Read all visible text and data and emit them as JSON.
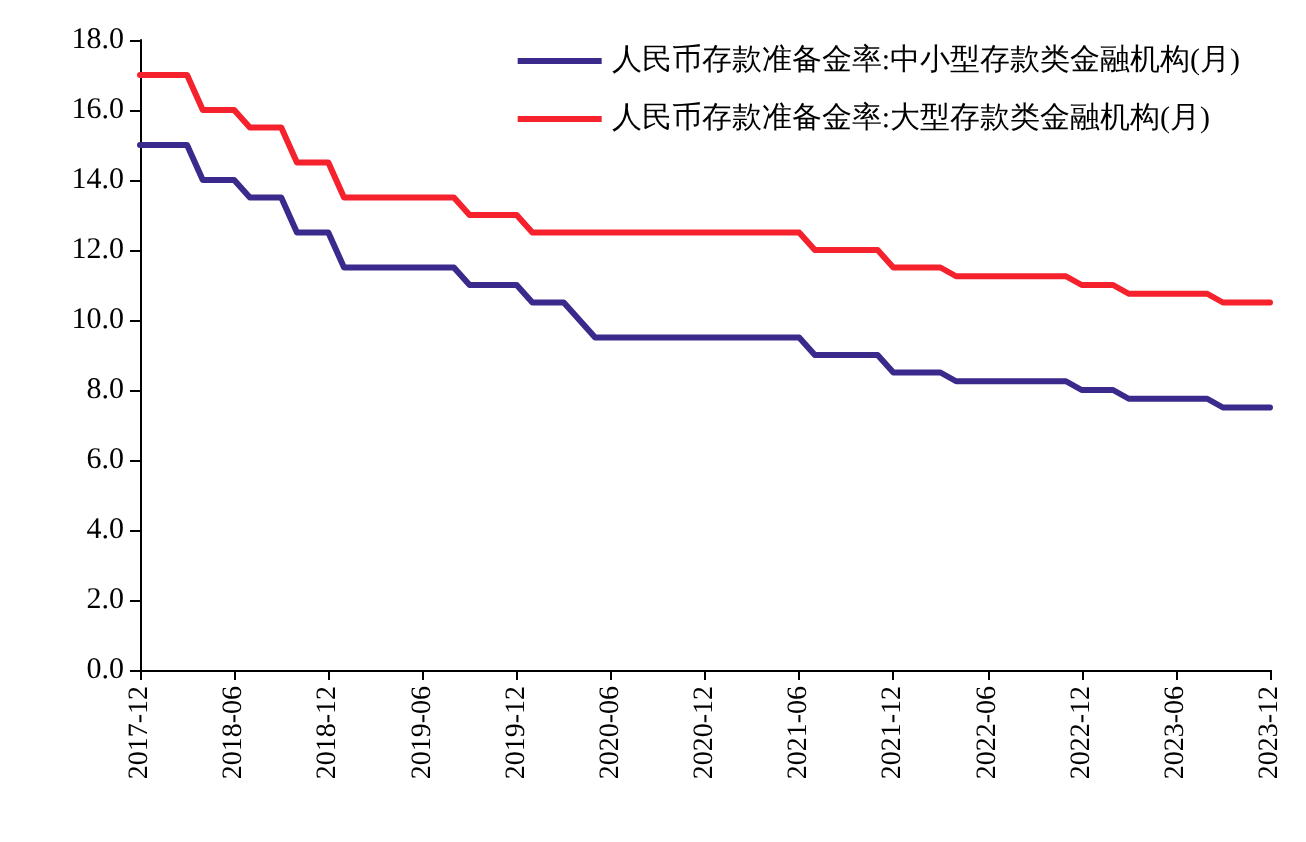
{
  "chart_data": {
    "type": "line",
    "categories": [
      "2017-12",
      null,
      null,
      null,
      null,
      null,
      "2018-06",
      null,
      null,
      null,
      null,
      null,
      "2018-12",
      null,
      null,
      null,
      null,
      null,
      "2019-06",
      null,
      null,
      null,
      null,
      null,
      "2019-12",
      null,
      null,
      null,
      null,
      null,
      "2020-06",
      null,
      null,
      null,
      null,
      null,
      "2020-12",
      null,
      null,
      null,
      null,
      null,
      "2021-06",
      null,
      null,
      null,
      null,
      null,
      "2021-12",
      null,
      null,
      null,
      null,
      null,
      "2022-06",
      null,
      null,
      null,
      null,
      null,
      "2022-12",
      null,
      null,
      null,
      null,
      null,
      "2023-06",
      null,
      null,
      null,
      null,
      null,
      "2023-12"
    ],
    "series": [
      {
        "name": "人民币存款准备金率:中小型存款类金融机构(月)",
        "color": "#3b2a8c",
        "values": [
          15,
          15,
          15,
          15,
          14,
          14,
          14,
          13.5,
          13.5,
          13.5,
          12.5,
          12.5,
          12.5,
          11.5,
          11.5,
          11.5,
          11.5,
          11.5,
          11.5,
          11.5,
          11.5,
          11,
          11,
          11,
          11,
          10.5,
          10.5,
          10.5,
          10,
          9.5,
          9.5,
          9.5,
          9.5,
          9.5,
          9.5,
          9.5,
          9.5,
          9.5,
          9.5,
          9.5,
          9.5,
          9.5,
          9.5,
          9,
          9,
          9,
          9,
          9,
          8.5,
          8.5,
          8.5,
          8.5,
          8.25,
          8.25,
          8.25,
          8.25,
          8.25,
          8.25,
          8.25,
          8.25,
          8,
          8,
          8,
          7.75,
          7.75,
          7.75,
          7.75,
          7.75,
          7.75,
          7.5,
          7.5,
          7.5,
          7.5
        ]
      },
      {
        "name": "人民币存款准备金率:大型存款类金融机构(月)",
        "color": "#f5222d",
        "values": [
          17,
          17,
          17,
          17,
          16,
          16,
          16,
          15.5,
          15.5,
          15.5,
          14.5,
          14.5,
          14.5,
          13.5,
          13.5,
          13.5,
          13.5,
          13.5,
          13.5,
          13.5,
          13.5,
          13,
          13,
          13,
          13,
          12.5,
          12.5,
          12.5,
          12.5,
          12.5,
          12.5,
          12.5,
          12.5,
          12.5,
          12.5,
          12.5,
          12.5,
          12.5,
          12.5,
          12.5,
          12.5,
          12.5,
          12.5,
          12,
          12,
          12,
          12,
          12,
          11.5,
          11.5,
          11.5,
          11.5,
          11.25,
          11.25,
          11.25,
          11.25,
          11.25,
          11.25,
          11.25,
          11.25,
          11,
          11,
          11,
          10.75,
          10.75,
          10.75,
          10.75,
          10.75,
          10.75,
          10.5,
          10.5,
          10.5,
          10.5
        ]
      }
    ],
    "ylim": [
      0,
      18
    ],
    "yticks": [
      {
        "value": 0,
        "label": "0.0"
      },
      {
        "value": 2,
        "label": "2.0"
      },
      {
        "value": 4,
        "label": "4.0"
      },
      {
        "value": 6,
        "label": "6.0"
      },
      {
        "value": 8,
        "label": "8.0"
      },
      {
        "value": 10,
        "label": "10.0"
      },
      {
        "value": 12,
        "label": "12.0"
      },
      {
        "value": 14,
        "label": "14.0"
      },
      {
        "value": 16,
        "label": "16.0"
      },
      {
        "value": 18,
        "label": "18.0"
      }
    ],
    "grid": false,
    "legend": "top right",
    "marker": "none",
    "line_style": "solid"
  }
}
